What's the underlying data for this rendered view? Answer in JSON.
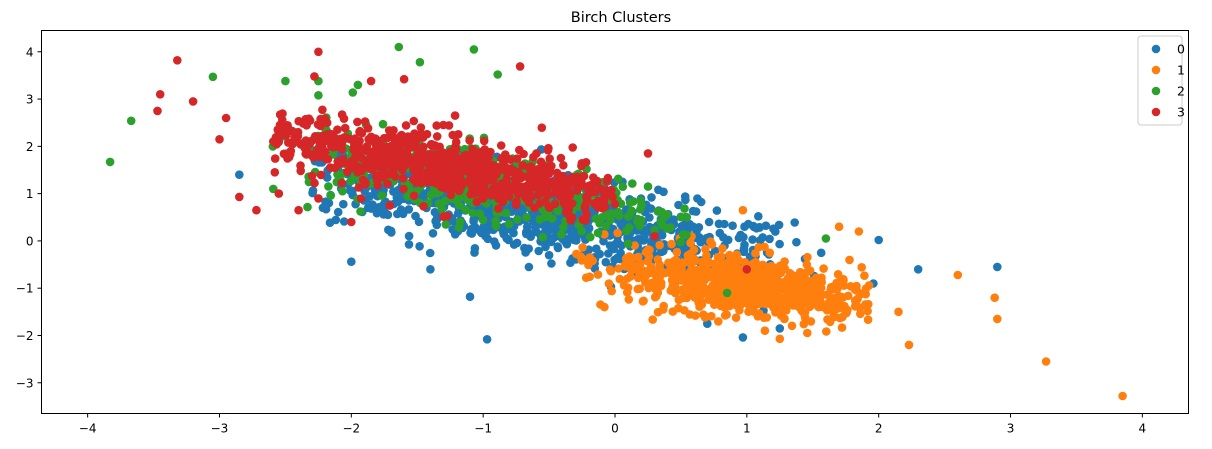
{
  "chart_data": {
    "type": "scatter",
    "title": "Birch Clusters",
    "xlabel": "",
    "ylabel": "",
    "xlim": [
      -4.35,
      4.35
    ],
    "ylim": [
      -3.65,
      4.45
    ],
    "xticks": [
      -4,
      -3,
      -2,
      -1,
      0,
      1,
      2,
      3,
      4
    ],
    "yticks": [
      -3,
      -2,
      -1,
      0,
      1,
      2,
      3,
      4
    ],
    "grid": false,
    "legend_position": "top-right",
    "marker": "circle",
    "series": [
      {
        "name": "0",
        "color": "#1f77b4",
        "cluster": {
          "center": [
            -0.7,
            0.6
          ],
          "spread_along": 1.15,
          "spread_across": 0.38,
          "angle_deg": -28,
          "count": 900,
          "xrange": [
            -2.3,
            1.6
          ]
        },
        "points": [
          [
            -2.85,
            1.4
          ],
          [
            -0.97,
            -2.08
          ],
          [
            -1.1,
            -1.18
          ],
          [
            -1.4,
            -0.6
          ],
          [
            -0.03,
            -0.97
          ],
          [
            0.97,
            -2.04
          ],
          [
            0.7,
            -1.75
          ],
          [
            1.96,
            -0.9
          ],
          [
            2.0,
            0.02
          ],
          [
            2.3,
            -0.6
          ],
          [
            2.9,
            -0.55
          ],
          [
            1.25,
            -1.85
          ]
        ]
      },
      {
        "name": "1",
        "color": "#ff7f0e",
        "cluster": {
          "center": [
            0.95,
            -0.95
          ],
          "spread_along": 0.55,
          "spread_across": 0.3,
          "angle_deg": -28,
          "count": 700,
          "xrange": [
            -0.3,
            1.95
          ]
        },
        "points": [
          [
            3.85,
            -3.28
          ],
          [
            3.27,
            -2.55
          ],
          [
            2.23,
            -2.2
          ],
          [
            2.9,
            -1.65
          ],
          [
            2.88,
            -1.2
          ],
          [
            2.6,
            -0.72
          ],
          [
            2.15,
            -1.5
          ],
          [
            1.85,
            0.2
          ],
          [
            1.7,
            0.3
          ],
          [
            0.97,
            0.65
          ],
          [
            1.25,
            -2.07
          ]
        ]
      },
      {
        "name": "2",
        "color": "#2ca02c",
        "cluster": {
          "center": [
            -1.0,
            1.2
          ],
          "spread_along": 0.9,
          "spread_across": 0.35,
          "angle_deg": -28,
          "count": 420,
          "xrange": [
            -2.6,
            0.6
          ]
        },
        "points": [
          [
            -3.83,
            1.67
          ],
          [
            -3.67,
            2.54
          ],
          [
            -3.05,
            3.47
          ],
          [
            -2.5,
            3.38
          ],
          [
            -1.64,
            4.1
          ],
          [
            -1.07,
            4.05
          ],
          [
            -0.89,
            3.52
          ],
          [
            -1.48,
            3.78
          ],
          [
            -1.95,
            3.3
          ],
          [
            -2.25,
            3.08
          ],
          [
            -2.25,
            3.38
          ],
          [
            1.6,
            0.05
          ],
          [
            0.85,
            -1.1
          ]
        ]
      },
      {
        "name": "3",
        "color": "#d62728",
        "cluster": {
          "center": [
            -1.35,
            1.6
          ],
          "spread_along": 0.9,
          "spread_across": 0.3,
          "angle_deg": -28,
          "count": 700,
          "xrange": [
            -2.6,
            0.0
          ]
        },
        "points": [
          [
            -3.32,
            3.82
          ],
          [
            -3.45,
            3.1
          ],
          [
            -3.47,
            2.75
          ],
          [
            -3.2,
            2.95
          ],
          [
            -2.95,
            2.6
          ],
          [
            -3.0,
            2.15
          ],
          [
            -2.85,
            0.93
          ],
          [
            -2.72,
            0.65
          ],
          [
            -2.25,
            4.0
          ],
          [
            -2.28,
            3.48
          ],
          [
            -1.6,
            3.42
          ],
          [
            -0.72,
            3.69
          ],
          [
            -1.85,
            3.38
          ],
          [
            1.0,
            -0.6
          ],
          [
            0.3,
            0.1
          ],
          [
            -2.0,
            0.4
          ],
          [
            -2.55,
            1.0
          ],
          [
            -2.4,
            0.65
          ],
          [
            -2.25,
            0.9
          ],
          [
            0.25,
            1.85
          ]
        ]
      }
    ]
  }
}
